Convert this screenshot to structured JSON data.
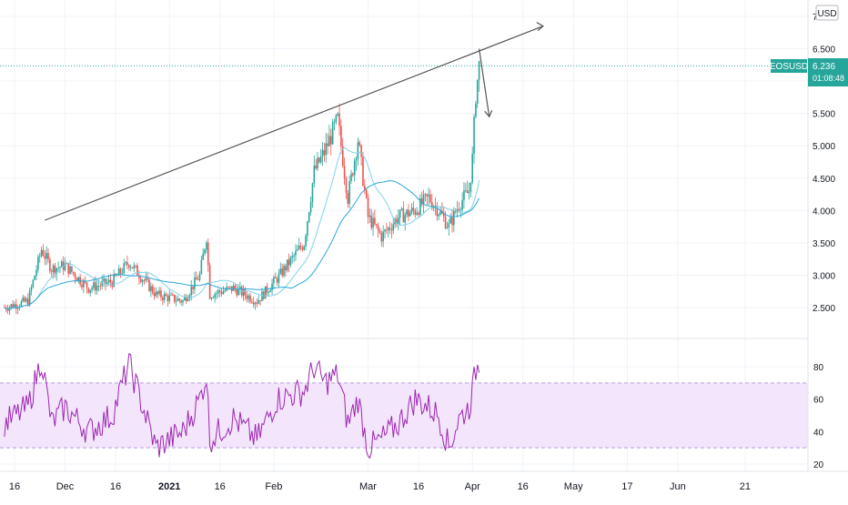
{
  "currency_label": "USD",
  "colors": {
    "up": "#26a69a",
    "down": "#ef5350",
    "ma_fast": "#7fd3e6",
    "ma_slow": "#2aa7d6",
    "rsi_line": "#9c27b0",
    "rsi_band": "#f3e5fb",
    "grid": "#f0f3fa",
    "axis_text": "#131722",
    "price_tag": "#26a69a",
    "annotation": "#555555"
  },
  "chart_data": [
    {
      "type": "candlestick",
      "symbol": "EOSUSD",
      "last_price": "6.236",
      "countdown": "01:08:48",
      "y_ticks": [
        "7",
        "6.500",
        "6.000",
        "5.500",
        "5.000",
        "4.500",
        "4.000",
        "3.500",
        "3.000",
        "2.500"
      ],
      "ylim": [
        2.0,
        7.0
      ],
      "x_ticks": [
        "16",
        "Dec",
        "16",
        "2021",
        "16",
        "Feb",
        "Mar",
        "16",
        "Apr",
        "16",
        "May",
        "17",
        "Jun",
        "21"
      ],
      "anchors": [
        [
          "2020-11-13",
          2.5
        ],
        [
          "2020-11-20",
          2.6
        ],
        [
          "2020-11-24",
          3.4
        ],
        [
          "2020-11-27",
          3.1
        ],
        [
          "2020-12-01",
          3.15
        ],
        [
          "2020-12-08",
          2.8
        ],
        [
          "2020-12-15",
          2.9
        ],
        [
          "2020-12-20",
          3.2
        ],
        [
          "2020-12-28",
          2.7
        ],
        [
          "2021-01-05",
          2.6
        ],
        [
          "2021-01-10",
          3.0
        ],
        [
          "2021-01-12",
          3.6
        ],
        [
          "2021-01-13",
          2.7
        ],
        [
          "2021-01-20",
          2.8
        ],
        [
          "2021-01-27",
          2.6
        ],
        [
          "2021-02-02",
          2.95
        ],
        [
          "2021-02-10",
          3.5
        ],
        [
          "2021-02-13",
          4.6
        ],
        [
          "2021-02-16",
          4.9
        ],
        [
          "2021-02-20",
          5.4
        ],
        [
          "2021-02-23",
          4.2
        ],
        [
          "2021-02-26",
          5.1
        ],
        [
          "2021-03-01",
          3.9
        ],
        [
          "2021-03-05",
          3.6
        ],
        [
          "2021-03-10",
          3.9
        ],
        [
          "2021-03-15",
          4.0
        ],
        [
          "2021-03-19",
          4.2
        ],
        [
          "2021-03-22",
          4.0
        ],
        [
          "2021-03-25",
          3.75
        ],
        [
          "2021-03-28",
          4.1
        ],
        [
          "2021-03-31",
          4.3
        ],
        [
          "2021-04-01",
          4.8
        ],
        [
          "2021-04-02",
          5.8
        ],
        [
          "2021-04-03",
          6.236
        ]
      ],
      "trendline": [
        [
          "2020-11-25",
          3.85
        ],
        [
          "2021-04-22",
          6.85
        ]
      ],
      "arrow": [
        [
          "2021-04-03",
          6.5
        ],
        [
          "2021-04-06",
          5.45
        ]
      ]
    },
    {
      "type": "line",
      "indicator": "RSI",
      "y_ticks": [
        "80",
        "60",
        "40",
        "20"
      ],
      "ylim": [
        15,
        90
      ],
      "band": [
        30,
        70
      ],
      "anchors": [
        [
          "2020-11-13",
          45
        ],
        [
          "2020-11-20",
          55
        ],
        [
          "2020-11-24",
          85
        ],
        [
          "2020-11-27",
          45
        ],
        [
          "2020-12-01",
          55
        ],
        [
          "2020-12-08",
          40
        ],
        [
          "2020-12-15",
          50
        ],
        [
          "2020-12-20",
          82
        ],
        [
          "2020-12-28",
          30
        ],
        [
          "2021-01-05",
          40
        ],
        [
          "2021-01-10",
          60
        ],
        [
          "2021-01-12",
          75
        ],
        [
          "2021-01-13",
          35
        ],
        [
          "2021-01-20",
          48
        ],
        [
          "2021-01-27",
          35
        ],
        [
          "2021-02-02",
          60
        ],
        [
          "2021-02-10",
          65
        ],
        [
          "2021-02-13",
          80
        ],
        [
          "2021-02-16",
          70
        ],
        [
          "2021-02-20",
          75
        ],
        [
          "2021-02-23",
          45
        ],
        [
          "2021-02-26",
          60
        ],
        [
          "2021-03-01",
          30
        ],
        [
          "2021-03-05",
          35
        ],
        [
          "2021-03-10",
          45
        ],
        [
          "2021-03-15",
          60
        ],
        [
          "2021-03-19",
          55
        ],
        [
          "2021-03-22",
          50
        ],
        [
          "2021-03-25",
          30
        ],
        [
          "2021-03-28",
          48
        ],
        [
          "2021-03-31",
          55
        ],
        [
          "2021-04-01",
          65
        ],
        [
          "2021-04-02",
          78
        ],
        [
          "2021-04-03",
          82
        ]
      ]
    }
  ]
}
